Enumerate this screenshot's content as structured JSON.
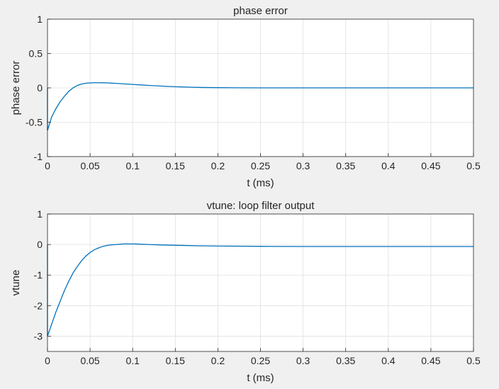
{
  "colors": {
    "background": "#f0f0f0",
    "plot_area": "#ffffff",
    "grid": "#dfdfdf",
    "axis": "#262626",
    "series": "#0072bd"
  },
  "chart_data": [
    {
      "type": "line",
      "title": "phase error",
      "xlabel": "t (ms)",
      "ylabel": "phase error",
      "xlim": [
        0,
        0.5
      ],
      "ylim": [
        -1,
        1
      ],
      "grid": true,
      "xticks": [
        "0",
        "0.05",
        "0.1",
        "0.15",
        "0.2",
        "0.25",
        "0.3",
        "0.35",
        "0.4",
        "0.45",
        "0.5"
      ],
      "yticks": [
        "-1",
        "-0.5",
        "0",
        "0.5",
        "1"
      ],
      "series": [
        {
          "color": "#0072bd",
          "x": [
            0,
            0,
            0.005,
            0.01,
            0.015,
            0.02,
            0.025,
            0.03,
            0.035,
            0.04,
            0.045,
            0.05,
            0.055,
            0.06,
            0.065,
            0.07,
            0.075,
            0.08,
            0.09,
            0.1,
            0.11,
            0.12,
            0.13,
            0.14,
            0.15,
            0.16,
            0.17,
            0.18,
            0.2,
            0.22,
            0.25,
            0.3,
            0.35,
            0.4,
            0.45,
            0.5
          ],
          "y": [
            0,
            -0.62,
            -0.42,
            -0.3,
            -0.2,
            -0.12,
            -0.05,
            0.0,
            0.035,
            0.055,
            0.067,
            0.072,
            0.075,
            0.075,
            0.074,
            0.072,
            0.069,
            0.066,
            0.058,
            0.05,
            0.042,
            0.035,
            0.028,
            0.022,
            0.017,
            0.013,
            0.009,
            0.006,
            0.003,
            0.001,
            0.0,
            0.0,
            0.0,
            0.0,
            0.0,
            0.0
          ]
        }
      ]
    },
    {
      "type": "line",
      "title": "vtune: loop filter output",
      "xlabel": "t (ms)",
      "ylabel": "vtune",
      "xlim": [
        0,
        0.5
      ],
      "ylim": [
        -3.5,
        1
      ],
      "grid": true,
      "xticks": [
        "0",
        "0.05",
        "0.1",
        "0.15",
        "0.2",
        "0.25",
        "0.3",
        "0.35",
        "0.4",
        "0.45",
        "0.5"
      ],
      "yticks": [
        "-3",
        "-2",
        "-1",
        "0",
        "1"
      ],
      "series": [
        {
          "color": "#0072bd",
          "x": [
            0,
            0,
            0.005,
            0.01,
            0.015,
            0.02,
            0.025,
            0.03,
            0.035,
            0.04,
            0.045,
            0.05,
            0.055,
            0.06,
            0.065,
            0.07,
            0.075,
            0.08,
            0.085,
            0.09,
            0.095,
            0.1,
            0.105,
            0.11,
            0.12,
            0.13,
            0.15,
            0.175,
            0.2,
            0.25,
            0.3,
            0.35,
            0.4,
            0.45,
            0.5
          ],
          "y": [
            0,
            -3.0,
            -2.6,
            -2.2,
            -1.85,
            -1.5,
            -1.2,
            -0.93,
            -0.72,
            -0.53,
            -0.38,
            -0.26,
            -0.17,
            -0.11,
            -0.06,
            -0.03,
            -0.01,
            0.0,
            0.01,
            0.02,
            0.02,
            0.02,
            0.015,
            0.01,
            0.0,
            -0.01,
            -0.025,
            -0.04,
            -0.05,
            -0.06,
            -0.065,
            -0.065,
            -0.065,
            -0.065,
            -0.065
          ]
        }
      ]
    }
  ]
}
